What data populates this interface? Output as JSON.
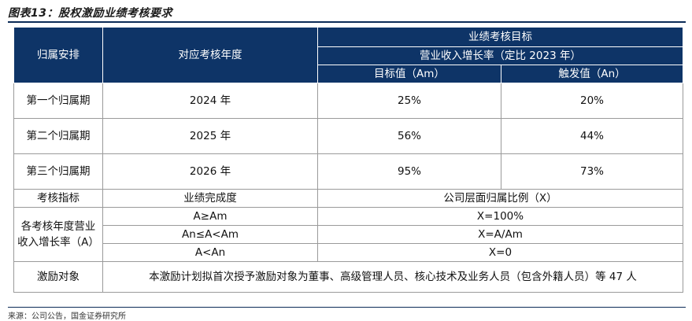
{
  "title": "图表13：股权激励业绩考核要求",
  "header": {
    "col_arrangement": "归属安排",
    "col_year": "对应考核年度",
    "col_target": "业绩考核目标",
    "col_growth": "营业收入增长率（定比 2023 年）",
    "col_am": "目标值（Am）",
    "col_an": "触发值（An）"
  },
  "periods": [
    {
      "name": "第一个归属期",
      "year": "2024 年",
      "am": "25%",
      "an": "20%"
    },
    {
      "name": "第二个归属期",
      "year": "2025 年",
      "am": "56%",
      "an": "44%"
    },
    {
      "name": "第三个归属期",
      "year": "2026 年",
      "am": "95%",
      "an": "73%"
    }
  ],
  "assessment": {
    "label": "考核指标",
    "completion": "业绩完成度",
    "ratio": "公司层面归属比例（X）"
  },
  "growth_rate": {
    "label": "各考核年度营业收入增长率（A）",
    "rows": [
      {
        "condition": "A≥Am",
        "x": "X=100%"
      },
      {
        "condition": "An≤A<Am",
        "x": "X=A/Am"
      },
      {
        "condition": "A<An",
        "x": "X=0"
      }
    ]
  },
  "incentive": {
    "label": "激励对象",
    "text": "本激励计划拟首次授予激励对象为董事、高级管理人员、核心技术及业务人员（包含外籍人员）等 47 人"
  },
  "source": "来源：公司公告，国金证券研究所"
}
